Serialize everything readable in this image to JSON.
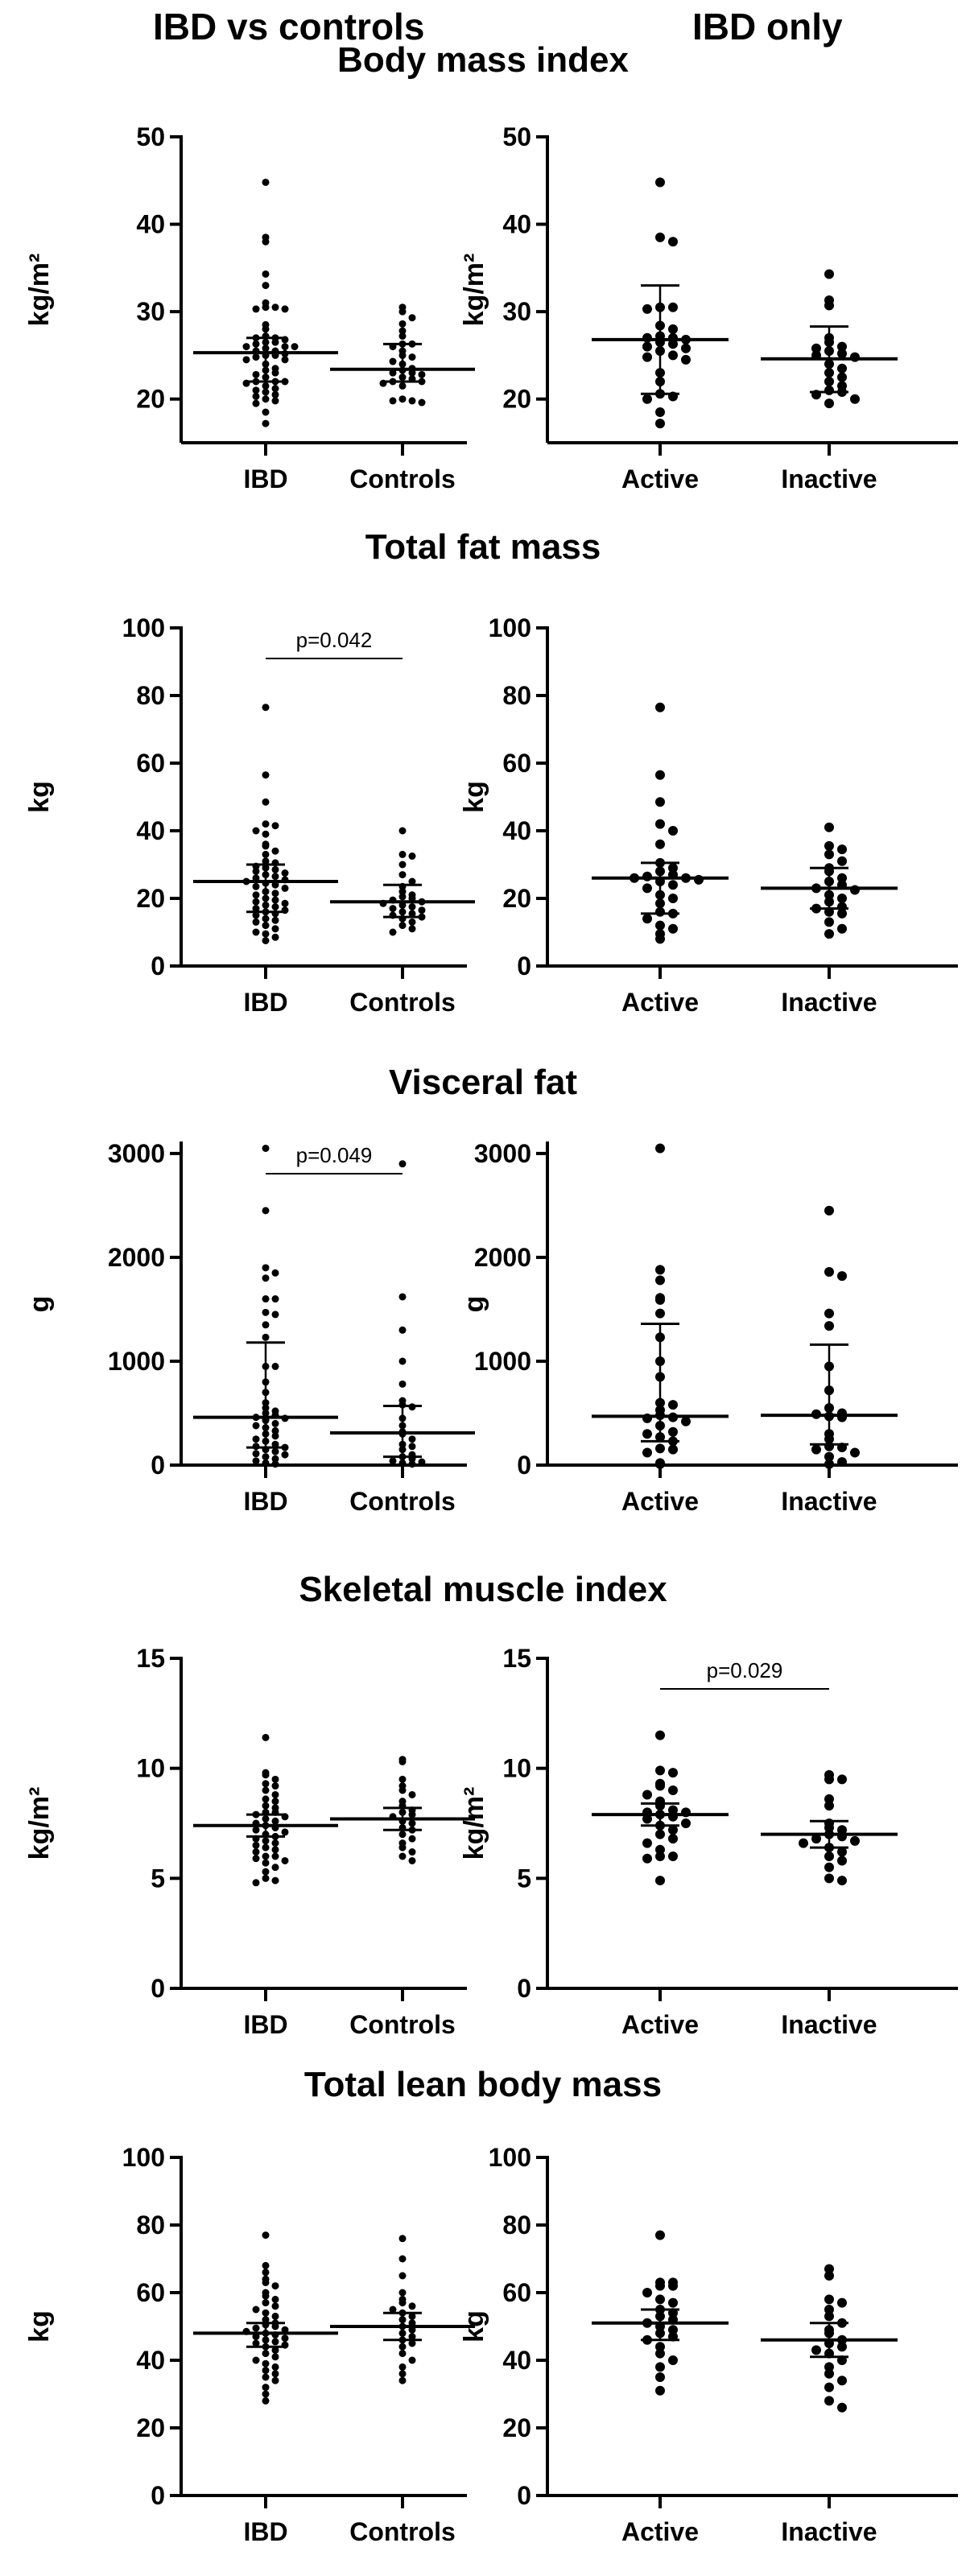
{
  "headers": {
    "left": "IBD vs controls",
    "right": "IBD only"
  },
  "chart_data": [
    {
      "type": "scatter",
      "row_title": "Body mass index",
      "ylabel": "kg/m²",
      "categories": [
        "IBD",
        "Controls"
      ],
      "ylim": [
        15,
        50
      ],
      "yticks": [
        20,
        30,
        40,
        50
      ],
      "pvalue": null,
      "groups": [
        {
          "name": "IBD",
          "median": 25.3,
          "q1": 22,
          "q3": 27,
          "points": [
            44.8,
            38.5,
            38,
            34.3,
            33,
            31,
            30.5,
            30.5,
            30.3,
            30.3,
            28.5,
            28,
            27.2,
            27,
            27,
            26.8,
            26.5,
            26.5,
            26.3,
            26,
            26,
            26,
            25.8,
            25.5,
            25.5,
            25.2,
            25,
            25,
            24.8,
            24.5,
            24.5,
            24,
            23.5,
            23.3,
            23,
            22.8,
            22.5,
            22,
            22,
            22,
            21.8,
            21.5,
            21.2,
            21,
            20.8,
            20.5,
            20.3,
            20,
            19.8,
            19.5,
            18.5,
            17.2
          ]
        },
        {
          "name": "Controls",
          "median": 23.4,
          "q1": 22,
          "q3": 26.3,
          "points": [
            30.5,
            30,
            29.3,
            28.6,
            27.8,
            27.2,
            26.3,
            26.3,
            26,
            25.5,
            25,
            24.8,
            24.3,
            24,
            23.5,
            23.3,
            23,
            23,
            22.8,
            22.5,
            22.3,
            22,
            22,
            21.8,
            21.5,
            20,
            19.8,
            19.8,
            19.6
          ]
        }
      ]
    },
    {
      "type": "scatter",
      "row_title": "Body mass index",
      "ylabel": "kg/m²",
      "categories": [
        "Active",
        "Inactive"
      ],
      "ylim": [
        15,
        50
      ],
      "yticks": [
        20,
        30,
        40,
        50
      ],
      "pvalue": null,
      "groups": [
        {
          "name": "Active",
          "median": 26.8,
          "q1": 20.6,
          "q3": 33,
          "points": [
            44.8,
            38.5,
            38,
            30.5,
            30.5,
            30.3,
            28.4,
            28,
            27.2,
            27,
            27,
            26.8,
            26.5,
            26.3,
            26,
            25.8,
            25.5,
            25,
            24.8,
            24.5,
            23,
            22,
            20.6,
            20.3,
            20,
            18.5,
            17.2
          ]
        },
        {
          "name": "Inactive",
          "median": 24.6,
          "q1": 20.8,
          "q3": 28.3,
          "points": [
            34.3,
            31.3,
            30.7,
            27,
            26.5,
            26,
            25.8,
            25.5,
            25.2,
            25,
            24.8,
            24,
            23.5,
            23,
            22.5,
            22,
            21.5,
            21,
            20.8,
            20.5,
            20,
            19.5
          ]
        }
      ]
    },
    {
      "type": "scatter",
      "row_title": "Total fat mass",
      "ylabel": "kg",
      "categories": [
        "IBD",
        "Controls"
      ],
      "ylim": [
        0,
        100
      ],
      "yticks": [
        0,
        20,
        40,
        60,
        80,
        100
      ],
      "pvalue": "p=0.042",
      "groups": [
        {
          "name": "IBD",
          "median": 25,
          "q1": 16,
          "q3": 30,
          "points": [
            76.5,
            56.5,
            48.5,
            42,
            41.5,
            40,
            39,
            36,
            35.5,
            34,
            33,
            31,
            30.5,
            29.5,
            29,
            28.5,
            28,
            27.5,
            27,
            26.5,
            26,
            25.5,
            25,
            24.5,
            24,
            23.5,
            23,
            22,
            21.5,
            21,
            20,
            19.5,
            19,
            18.5,
            18,
            17.5,
            17,
            16.5,
            16,
            15.5,
            15,
            14,
            13.5,
            13,
            12,
            11,
            10,
            9.5,
            8.5,
            7.5
          ]
        },
        {
          "name": "Controls",
          "median": 19,
          "q1": 14.5,
          "q3": 24,
          "points": [
            40,
            33,
            32.5,
            30,
            27,
            25,
            23.5,
            22,
            21,
            20.5,
            20,
            19.5,
            19,
            18.5,
            18,
            17.5,
            17,
            16.5,
            16,
            15.5,
            15,
            14.5,
            14,
            13,
            12,
            11,
            10
          ]
        }
      ]
    },
    {
      "type": "scatter",
      "row_title": "Total fat mass",
      "ylabel": "kg",
      "categories": [
        "Active",
        "Inactive"
      ],
      "ylim": [
        0,
        100
      ],
      "yticks": [
        0,
        20,
        40,
        60,
        80,
        100
      ],
      "pvalue": null,
      "groups": [
        {
          "name": "Active",
          "median": 26,
          "q1": 15.5,
          "q3": 30.5,
          "points": [
            76.5,
            56.5,
            48.5,
            42,
            40,
            36,
            30.5,
            29,
            28,
            27,
            26.5,
            26,
            26,
            25.5,
            25,
            24,
            23,
            21,
            20,
            18.5,
            16,
            15.5,
            14,
            12,
            11,
            9.5,
            8
          ]
        },
        {
          "name": "Inactive",
          "median": 23,
          "q1": 17,
          "q3": 29,
          "points": [
            41,
            35.5,
            34.5,
            33,
            31,
            29,
            28,
            26,
            25,
            24,
            23,
            22.5,
            21,
            20,
            19,
            17.5,
            17,
            16,
            15.5,
            13,
            11,
            9.5
          ]
        }
      ]
    },
    {
      "type": "scatter",
      "row_title": "Visceral fat",
      "ylabel": "g",
      "categories": [
        "IBD",
        "Controls"
      ],
      "ylim": [
        0,
        3100
      ],
      "yticks": [
        0,
        1000,
        2000,
        3000
      ],
      "pvalue": "p=0.049",
      "groups": [
        {
          "name": "IBD",
          "median": 460,
          "q1": 170,
          "q3": 1180,
          "points": [
            3050,
            2450,
            1900,
            1850,
            1800,
            1600,
            1600,
            1470,
            1450,
            1350,
            1230,
            950,
            950,
            800,
            700,
            600,
            550,
            520,
            500,
            480,
            460,
            450,
            430,
            400,
            380,
            360,
            330,
            300,
            280,
            250,
            230,
            200,
            180,
            170,
            150,
            130,
            110,
            100,
            80,
            60,
            40,
            20,
            10
          ]
        },
        {
          "name": "Controls",
          "median": 310,
          "q1": 80,
          "q3": 570,
          "points": [
            2900,
            1620,
            1300,
            1000,
            780,
            620,
            580,
            560,
            450,
            380,
            320,
            300,
            250,
            200,
            180,
            150,
            100,
            80,
            60,
            40,
            30,
            20,
            10
          ]
        }
      ]
    },
    {
      "type": "scatter",
      "row_title": "Visceral fat",
      "ylabel": "g",
      "categories": [
        "Active",
        "Inactive"
      ],
      "ylim": [
        0,
        3100
      ],
      "yticks": [
        0,
        1000,
        2000,
        3000
      ],
      "pvalue": null,
      "groups": [
        {
          "name": "Active",
          "median": 470,
          "q1": 230,
          "q3": 1360,
          "points": [
            3050,
            1880,
            1780,
            1610,
            1590,
            1460,
            1230,
            1000,
            850,
            600,
            580,
            530,
            480,
            460,
            450,
            420,
            380,
            320,
            300,
            270,
            230,
            160,
            150,
            120,
            20,
            10
          ]
        },
        {
          "name": "Inactive",
          "median": 480,
          "q1": 200,
          "q3": 1160,
          "points": [
            2450,
            1860,
            1820,
            1460,
            1340,
            950,
            720,
            550,
            500,
            490,
            470,
            460,
            300,
            250,
            180,
            170,
            150,
            120,
            80,
            30,
            10
          ]
        }
      ]
    },
    {
      "type": "scatter",
      "row_title": "Skeletal muscle index",
      "ylabel": "kg/m²",
      "categories": [
        "IBD",
        "Controls"
      ],
      "ylim": [
        0,
        15
      ],
      "yticks": [
        0,
        5,
        10,
        15
      ],
      "pvalue": null,
      "groups": [
        {
          "name": "IBD",
          "median": 7.4,
          "q1": 6.9,
          "q3": 7.9,
          "points": [
            11.4,
            9.8,
            9.7,
            9.5,
            9.3,
            9.2,
            9,
            8.8,
            8.6,
            8.5,
            8.3,
            8.2,
            8,
            8,
            7.9,
            7.8,
            7.7,
            7.6,
            7.5,
            7.4,
            7.3,
            7.2,
            7.1,
            7,
            6.9,
            6.8,
            6.7,
            6.6,
            6.5,
            6.4,
            6.3,
            6.2,
            6,
            6,
            5.9,
            5.8,
            5.7,
            5.5,
            5.3,
            5,
            4.9,
            4.8
          ]
        },
        {
          "name": "Controls",
          "median": 7.7,
          "q1": 7.2,
          "q3": 8.2,
          "points": [
            10.4,
            10.3,
            9.5,
            9.2,
            9,
            8.8,
            8.5,
            8.3,
            8.1,
            8,
            7.9,
            7.8,
            7.6,
            7.5,
            7.3,
            7.2,
            7,
            6.8,
            6.6,
            6.4,
            6.2,
            6,
            5.8
          ]
        }
      ]
    },
    {
      "type": "scatter",
      "row_title": "Skeletal muscle index",
      "ylabel": "kg/m²",
      "categories": [
        "Active",
        "Inactive"
      ],
      "ylim": [
        0,
        15
      ],
      "yticks": [
        0,
        5,
        10,
        15
      ],
      "pvalue": "p=0.029",
      "groups": [
        {
          "name": "Active",
          "median": 7.9,
          "q1": 7.4,
          "q3": 8.4,
          "points": [
            11.5,
            9.9,
            9.8,
            9.3,
            9.2,
            9,
            8.8,
            8.5,
            8.3,
            8.1,
            8,
            8,
            7.9,
            7.8,
            7.7,
            7.5,
            7.4,
            7.2,
            7,
            6.8,
            6.6,
            6.3,
            6,
            6,
            5.9,
            4.9
          ]
        },
        {
          "name": "Inactive",
          "median": 7,
          "q1": 6.4,
          "q3": 7.6,
          "points": [
            9.7,
            9.5,
            9.5,
            8.6,
            8.3,
            7.5,
            7.3,
            7.2,
            7,
            6.9,
            6.8,
            6.7,
            6.6,
            6.4,
            6.2,
            6,
            5.8,
            5.5,
            5,
            4.9
          ]
        }
      ]
    },
    {
      "type": "scatter",
      "row_title": "Total lean body mass",
      "ylabel": "kg",
      "categories": [
        "IBD",
        "Controls"
      ],
      "ylim": [
        0,
        100
      ],
      "yticks": [
        0,
        20,
        40,
        60,
        80,
        100
      ],
      "pvalue": null,
      "groups": [
        {
          "name": "IBD",
          "median": 48,
          "q1": 44,
          "q3": 51,
          "points": [
            77,
            68,
            66,
            64,
            63,
            62,
            60,
            59,
            58,
            57,
            56,
            55,
            54,
            53,
            52,
            51,
            50.5,
            50,
            49.5,
            49,
            48.5,
            48,
            47.5,
            47,
            46.5,
            46,
            45.5,
            45,
            44.5,
            44,
            43,
            42,
            41,
            40,
            39,
            38,
            37,
            36,
            35,
            34,
            32,
            30,
            28
          ]
        },
        {
          "name": "Controls",
          "median": 50,
          "q1": 46,
          "q3": 54,
          "points": [
            76,
            70,
            65,
            60,
            58,
            57,
            56,
            55,
            54,
            53,
            52,
            51,
            50,
            49,
            48,
            47,
            46,
            45,
            44,
            42,
            40,
            38,
            36,
            34
          ]
        }
      ]
    },
    {
      "type": "scatter",
      "row_title": "Total lean body mass",
      "ylabel": "kg",
      "categories": [
        "Active",
        "Inactive"
      ],
      "ylim": [
        0,
        100
      ],
      "yticks": [
        0,
        20,
        40,
        60,
        80,
        100
      ],
      "pvalue": null,
      "groups": [
        {
          "name": "Active",
          "median": 51,
          "q1": 46,
          "q3": 55,
          "points": [
            77,
            63,
            63,
            62,
            62,
            60,
            58,
            57,
            55,
            54,
            53,
            52,
            51,
            50,
            49,
            48,
            47,
            46,
            44,
            42,
            40,
            38,
            35,
            31
          ]
        },
        {
          "name": "Inactive",
          "median": 46,
          "q1": 41,
          "q3": 51,
          "points": [
            67,
            65,
            58,
            57,
            55,
            53,
            51,
            49,
            48,
            46,
            45,
            44,
            43,
            42,
            40,
            38,
            36,
            34,
            32,
            28,
            26
          ]
        }
      ]
    }
  ]
}
